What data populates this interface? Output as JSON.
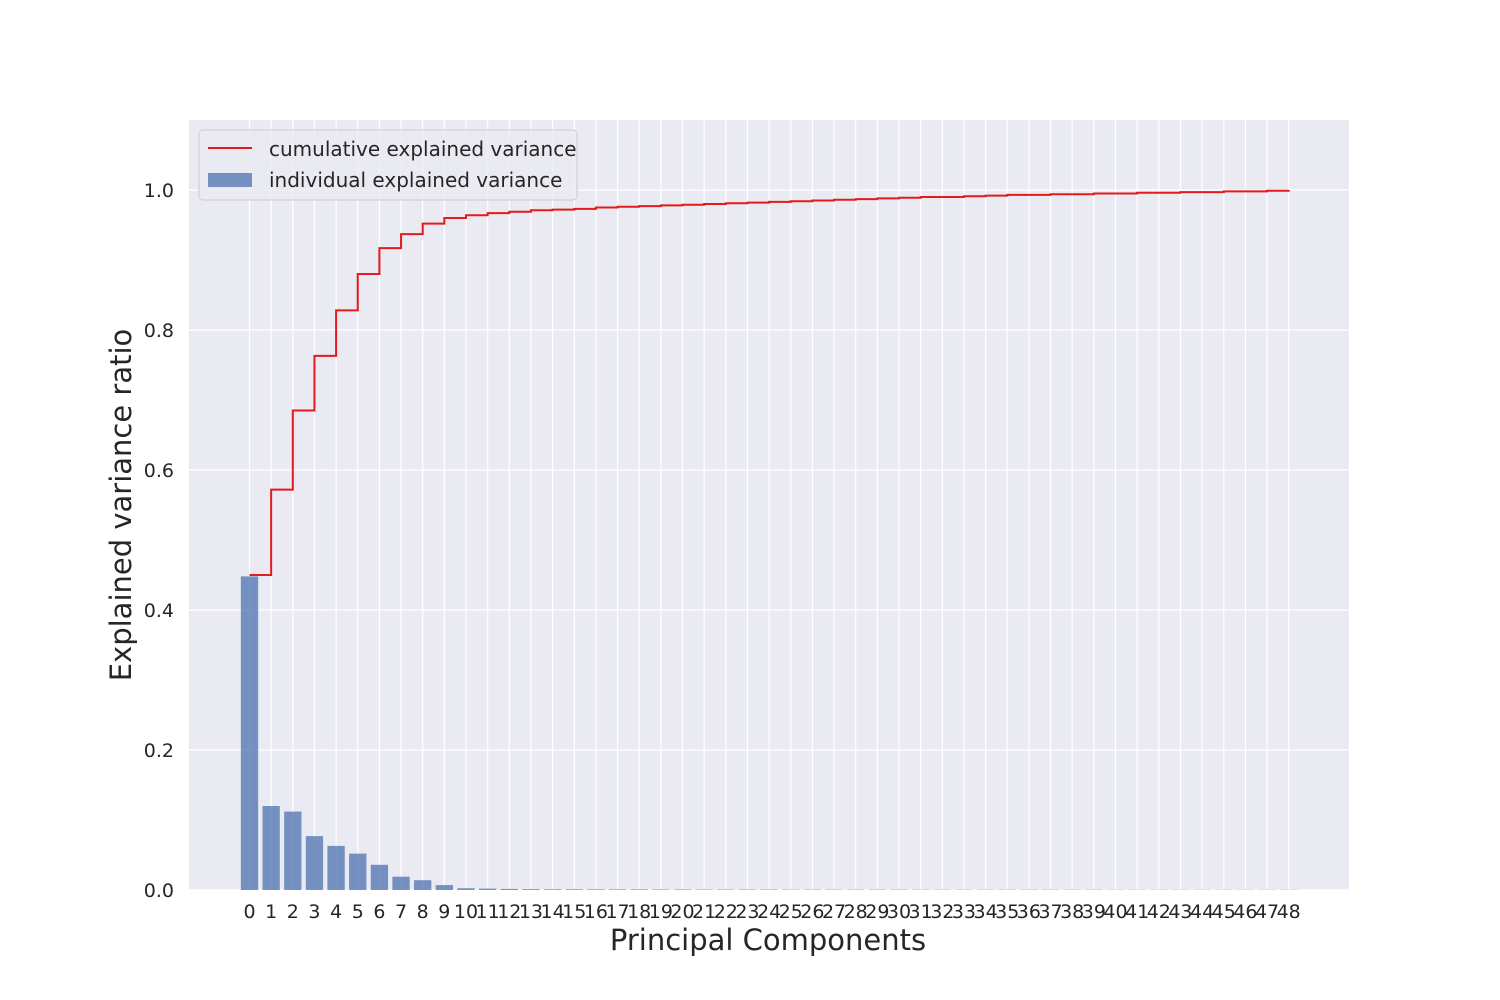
{
  "chart_data": {
    "type": "bar",
    "xlabel": "Principal Components",
    "ylabel": "Explained variance ratio",
    "categories": [
      "0",
      "1",
      "2",
      "3",
      "4",
      "5",
      "6",
      "7",
      "8",
      "9",
      "10",
      "11",
      "12",
      "13",
      "14",
      "15",
      "16",
      "17",
      "18",
      "19",
      "20",
      "21",
      "22",
      "23",
      "24",
      "25",
      "26",
      "27",
      "28",
      "29",
      "30",
      "31",
      "32",
      "33",
      "34",
      "35",
      "36",
      "37",
      "38",
      "39",
      "40",
      "41",
      "42",
      "43",
      "44",
      "45",
      "46",
      "47",
      "48"
    ],
    "ylim": [
      0,
      1.1
    ],
    "yticks": [
      0.0,
      0.2,
      0.4,
      0.6,
      0.8,
      1.0
    ],
    "ytick_labels": [
      "0.0",
      "0.2",
      "0.4",
      "0.6",
      "0.8",
      "1.0"
    ],
    "grid": true,
    "legend_position": "upper-left",
    "series": [
      {
        "name": "individual explained variance",
        "type": "bar",
        "color": "#4c72b0",
        "values": [
          0.448,
          0.12,
          0.112,
          0.077,
          0.063,
          0.052,
          0.036,
          0.019,
          0.014,
          0.007,
          0.0025,
          0.002,
          0.0015,
          0.0012,
          0.001,
          0.001,
          0.0009,
          0.0008,
          0.0008,
          0.0007,
          0.0007,
          0.0006,
          0.0006,
          0.0006,
          0.0006,
          0.0005,
          0.0005,
          0.0005,
          0.0005,
          0.0005,
          0.0005,
          0.0004,
          0.0004,
          0.0004,
          0.0004,
          0.0004,
          0.0004,
          0.0004,
          0.0004,
          0.0004,
          0.0003,
          0.0003,
          0.0003,
          0.0003,
          0.0003,
          0.0003,
          0.0003,
          0.0003,
          0.0003
        ]
      },
      {
        "name": "cumulative explained variance",
        "type": "step",
        "color": "#e41a1c",
        "values": [
          0.45,
          0.572,
          0.685,
          0.763,
          0.828,
          0.88,
          0.917,
          0.937,
          0.952,
          0.96,
          0.964,
          0.967,
          0.969,
          0.971,
          0.972,
          0.973,
          0.975,
          0.976,
          0.977,
          0.978,
          0.979,
          0.98,
          0.981,
          0.982,
          0.983,
          0.984,
          0.985,
          0.986,
          0.987,
          0.988,
          0.989,
          0.99,
          0.99,
          0.991,
          0.992,
          0.993,
          0.993,
          0.994,
          0.994,
          0.995,
          0.995,
          0.996,
          0.996,
          0.997,
          0.997,
          0.998,
          0.998,
          0.999,
          1.0
        ]
      }
    ]
  }
}
